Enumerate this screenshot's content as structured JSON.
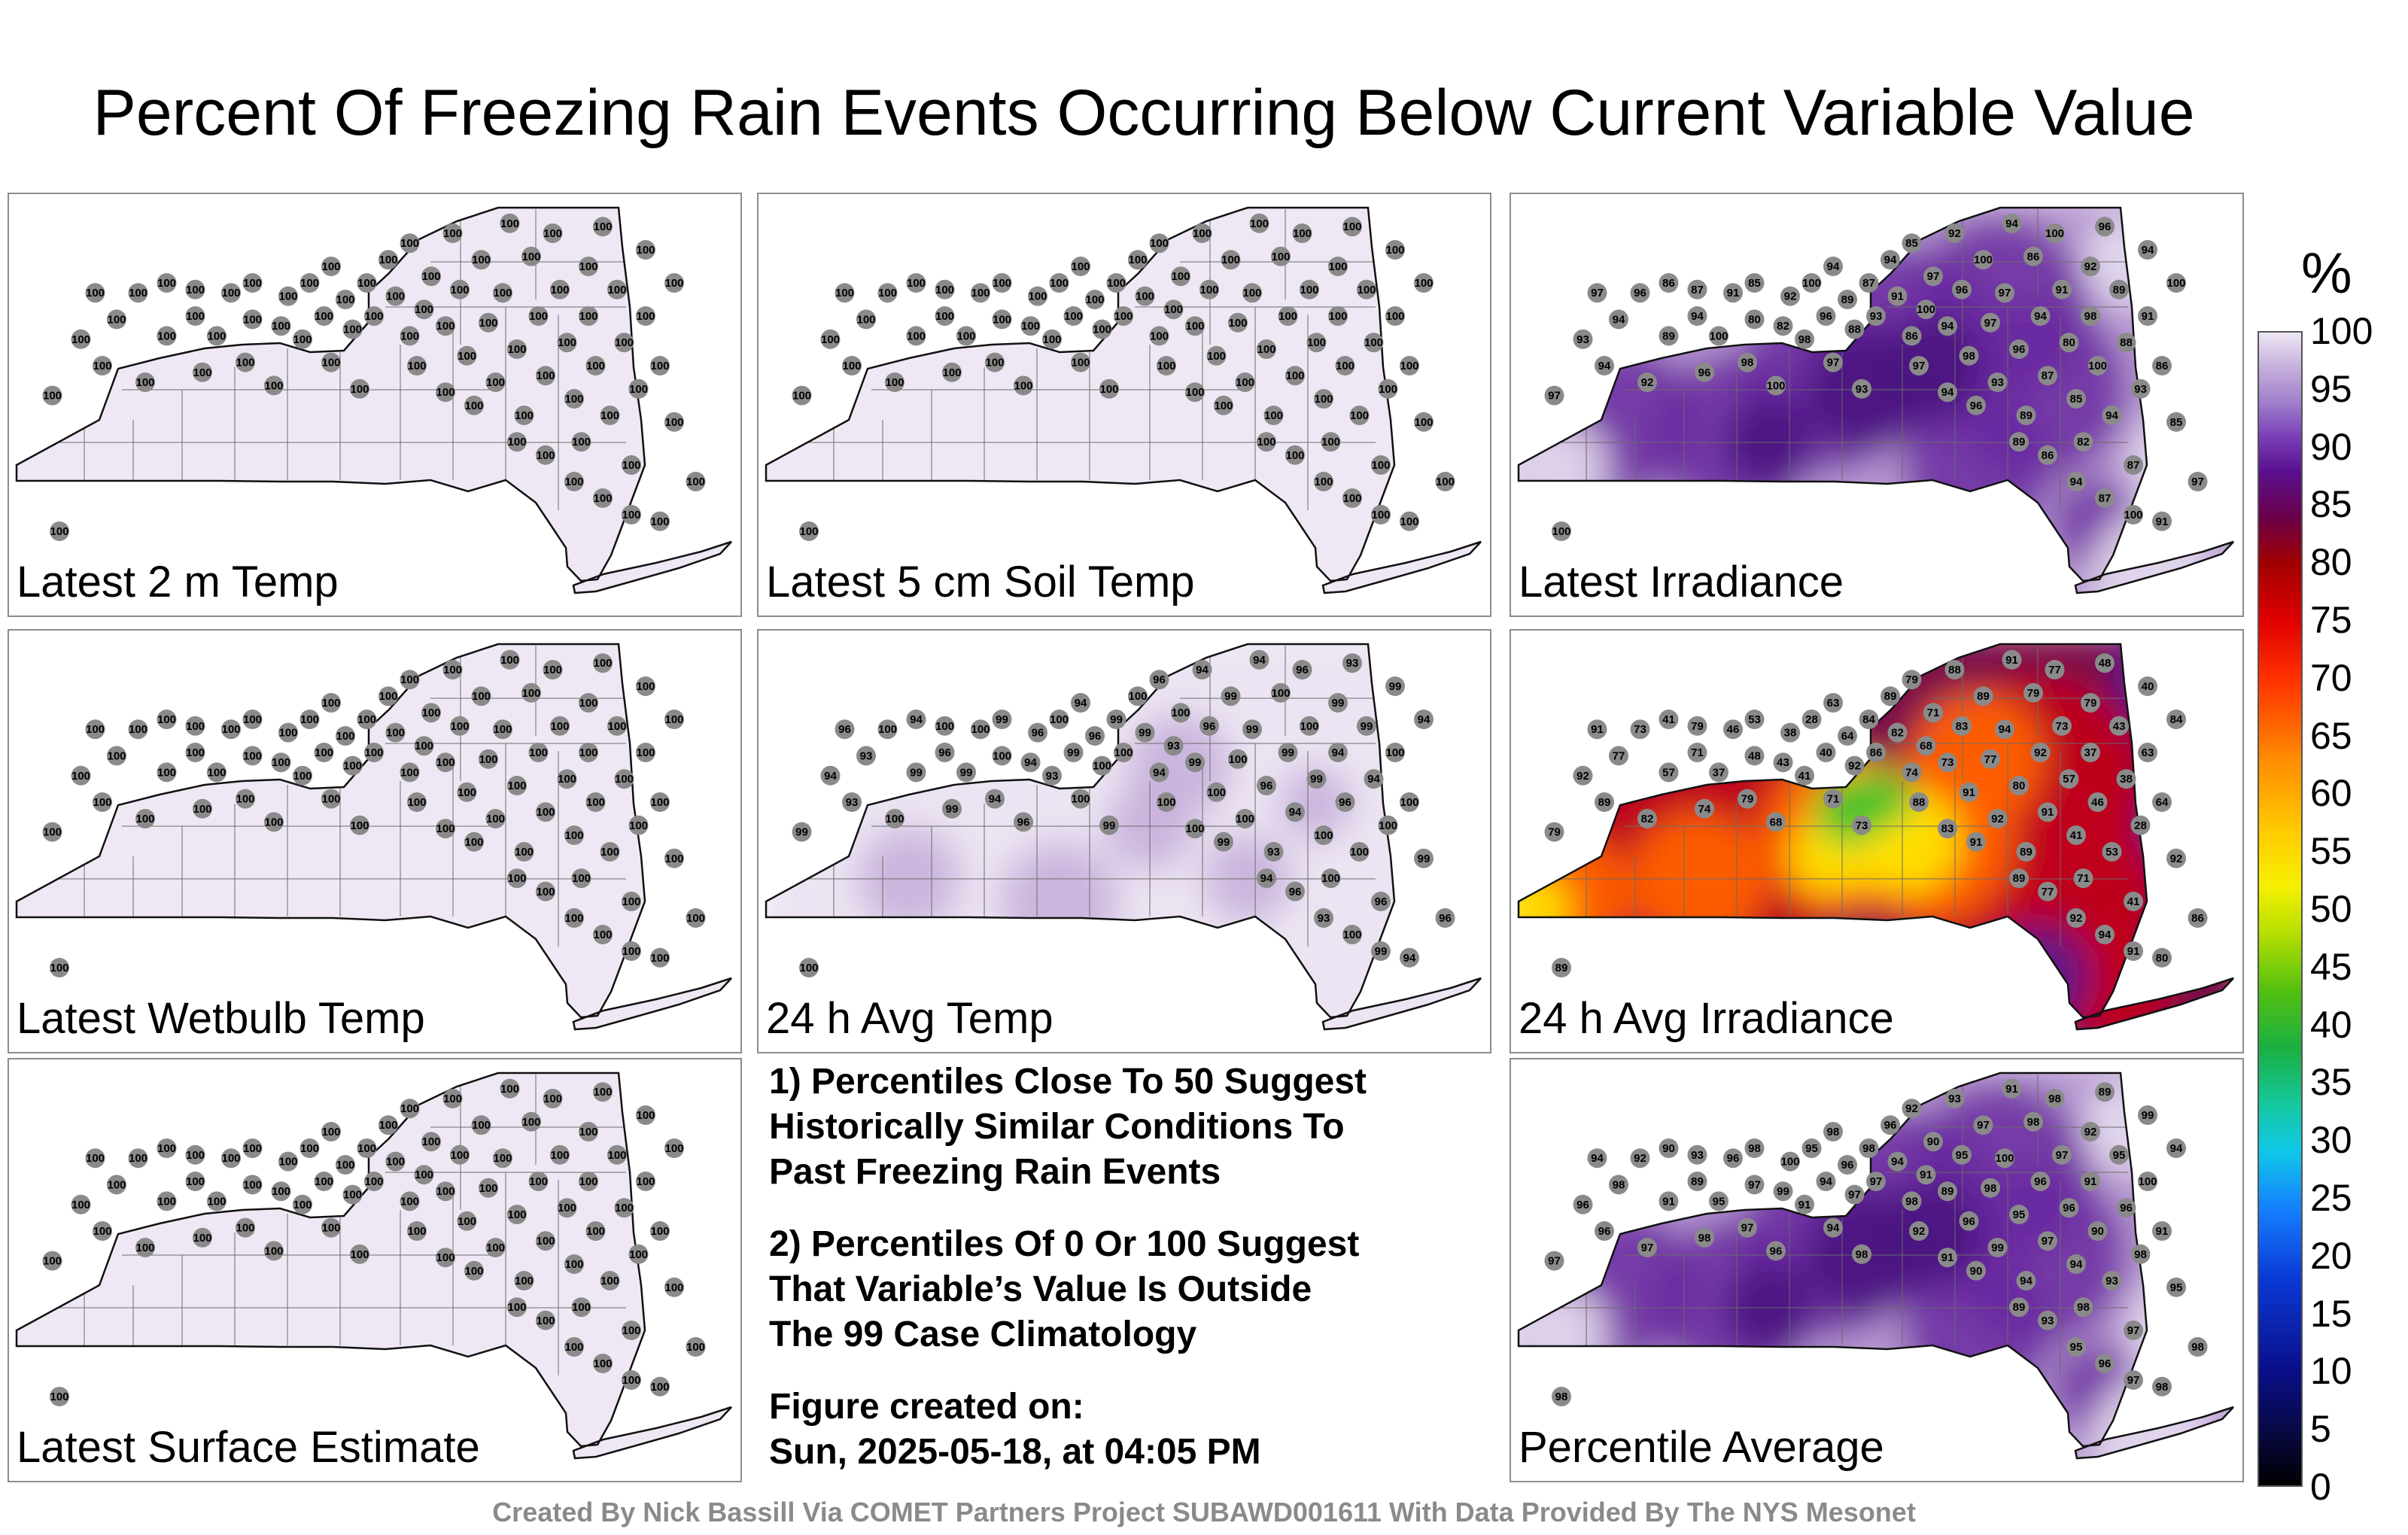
{
  "title": "Percent Of Freezing Rain Events Occurring Below Current Variable Value",
  "panels": [
    {
      "label": "Latest 2 m Temp",
      "fill": "uniform",
      "station_values": [
        "100"
      ]
    },
    {
      "label": "Latest 5 cm Soil Temp",
      "fill": "uniform",
      "station_values": [
        "100"
      ]
    },
    {
      "label": "Latest Irradiance",
      "fill": "purple",
      "station_values": [
        "100",
        "97",
        "93",
        "97",
        "94",
        "96",
        "89",
        "86",
        "94",
        "87",
        "100",
        "91",
        "80",
        "85",
        "82",
        "92",
        "98",
        "100",
        "96",
        "94",
        "89",
        "88",
        "87",
        "93",
        "94",
        "91",
        "86",
        "85",
        "100",
        "97",
        "94",
        "92",
        "96",
        "98"
      ]
    },
    {
      "label": "Latest Wetbulb Temp",
      "fill": "uniform",
      "station_values": [
        "100"
      ]
    },
    {
      "label": "24 h Avg Temp",
      "fill": "light",
      "station_values": [
        "100",
        "99",
        "94",
        "96",
        "93",
        "100",
        "99",
        "94",
        "96",
        "100",
        "99",
        "100"
      ]
    },
    {
      "label": "24 h Avg Irradiance",
      "fill": "hot",
      "station_values": [
        "89",
        "79",
        "92",
        "91",
        "77",
        "73",
        "57",
        "41",
        "71",
        "79",
        "37",
        "46",
        "48",
        "53",
        "43",
        "38",
        "41",
        "28",
        "40",
        "63",
        "64",
        "92",
        "84",
        "86",
        "89",
        "82",
        "74",
        "79",
        "68",
        "71",
        "73",
        "88",
        "83",
        "91",
        "89",
        "77",
        "92",
        "94",
        "91",
        "80"
      ]
    },
    {
      "label": "Latest Surface Estimate",
      "fill": "uniform",
      "station_values": [
        "100"
      ]
    },
    {
      "label": "Percentile Average",
      "fill": "purple",
      "station_values": [
        "98",
        "97",
        "96",
        "94",
        "98",
        "92",
        "91",
        "90",
        "89",
        "93",
        "95",
        "96",
        "97",
        "98",
        "99",
        "100",
        "91",
        "95",
        "94",
        "98",
        "96",
        "97"
      ]
    }
  ],
  "notes": [
    [
      "1) Percentiles Close To 50 Suggest",
      "Historically Similar Conditions To",
      "Past Freezing Rain Events"
    ],
    [
      "2) Percentiles Of 0 Or 100 Suggest",
      "That Variable’s Value Is Outside",
      "The 99 Case Climatology"
    ],
    [
      "Figure created on:",
      "Sun, 2025-05-18, at 04:05 PM"
    ]
  ],
  "colorbar": {
    "unit": "%",
    "ticks": [
      "100",
      "95",
      "90",
      "85",
      "80",
      "75",
      "70",
      "65",
      "60",
      "55",
      "50",
      "45",
      "40",
      "35",
      "30",
      "25",
      "20",
      "15",
      "10",
      "5",
      "0"
    ]
  },
  "footer": "Created By Nick Bassill Via COMET Partners Project SUBAWD001611 With Data Provided By The NYS Mesonet"
}
